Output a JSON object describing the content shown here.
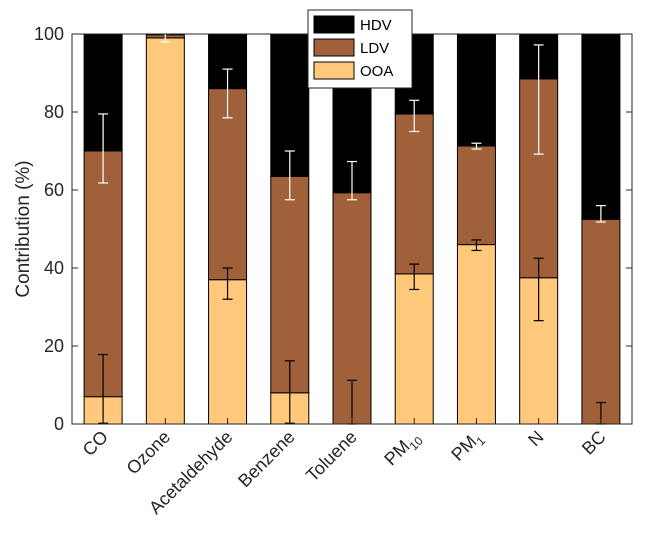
{
  "chart_data": {
    "type": "bar",
    "stacked": true,
    "categories": [
      {
        "label": "CO",
        "sub": ""
      },
      {
        "label": "Ozone",
        "sub": ""
      },
      {
        "label": "Acetaldehyde",
        "sub": ""
      },
      {
        "label": "Benzene",
        "sub": ""
      },
      {
        "label": "Toluene",
        "sub": ""
      },
      {
        "label": "PM",
        "sub": "10"
      },
      {
        "label": "PM",
        "sub": "1"
      },
      {
        "label": "N",
        "sub": ""
      },
      {
        "label": "BC",
        "sub": ""
      }
    ],
    "series": [
      {
        "name": "OOA",
        "color": "#FFC87A",
        "values": [
          7,
          99,
          37,
          8,
          0,
          38.5,
          46,
          37.5,
          0
        ]
      },
      {
        "name": "LDV",
        "color": "#A0603A",
        "values": [
          63,
          0.8,
          49,
          55.5,
          59.3,
          41,
          25.3,
          51,
          52.5
        ]
      },
      {
        "name": "HDV",
        "color": "#000000",
        "values": [
          30,
          0.2,
          14,
          36.5,
          40.7,
          20.5,
          28.7,
          11.5,
          47.5
        ]
      }
    ],
    "error_bars": {
      "OOA": [
        [
          0.2,
          17.8
        ],
        null,
        [
          32,
          40
        ],
        [
          0.2,
          16.2
        ],
        [
          0,
          11.2
        ],
        [
          34.5,
          41
        ],
        [
          44.5,
          47.2
        ],
        [
          26.5,
          42.5
        ],
        [
          0,
          5.5
        ]
      ],
      "LDV": [
        [
          61.8,
          79.5
        ],
        [
          98,
          100
        ],
        [
          78.5,
          91
        ],
        [
          57.5,
          70
        ],
        [
          57.5,
          67.3
        ],
        [
          75,
          83
        ],
        [
          70.5,
          72
        ],
        [
          69.2,
          97.2
        ],
        [
          51.8,
          56
        ]
      ]
    },
    "ylabel": "Contribution (%)",
    "xlabel": "",
    "ylim": [
      0,
      100
    ],
    "yticks": [
      0,
      20,
      40,
      60,
      80,
      100
    ],
    "legend": {
      "position": "top-center",
      "order": [
        "HDV",
        "LDV",
        "OOA"
      ]
    },
    "grid": false
  }
}
